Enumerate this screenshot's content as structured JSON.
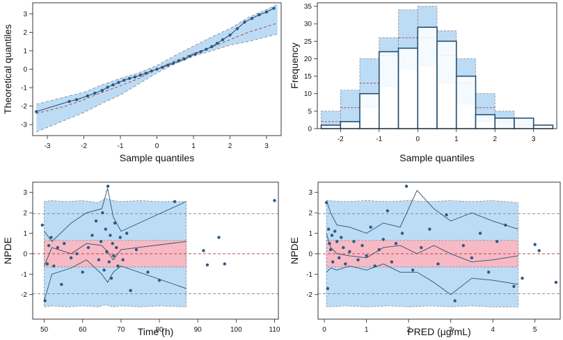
{
  "colors": {
    "blue_band": "#bcdcf6",
    "pink_band": "#f7b9c4",
    "point": "#2a5a85",
    "line": "#27506f",
    "red_dash": "#b5332f",
    "gray_dash": "#7f7f7f",
    "frame": "#222222"
  },
  "chart_data": [
    {
      "id": "qq",
      "type": "scatter",
      "title": "",
      "xlabel": "Sample quantiles",
      "ylabel": "Theoretical quantiles",
      "xlim": [
        -3.4,
        3.4
      ],
      "ylim": [
        -3.6,
        3.6
      ],
      "xticks": [
        -3,
        -2,
        -1,
        0,
        1,
        2,
        3
      ],
      "yticks": [
        -3,
        -2,
        -1,
        0,
        1,
        2,
        3
      ],
      "pi_band": {
        "x": [
          -3.3,
          -2.5,
          -2.0,
          -1.5,
          -1.0,
          -0.5,
          0.0,
          0.5,
          1.0,
          1.5,
          2.0,
          2.5,
          3.3
        ],
        "lower": [
          -3.4,
          -2.75,
          -2.35,
          -1.85,
          -1.4,
          -0.8,
          -0.2,
          0.3,
          0.7,
          1.0,
          1.3,
          1.5,
          1.9
        ],
        "upper": [
          -1.9,
          -1.5,
          -1.25,
          -0.85,
          -0.5,
          -0.2,
          0.2,
          0.75,
          1.25,
          1.75,
          2.2,
          2.8,
          3.5
        ],
        "median": [
          -2.4,
          -2.0,
          -1.65,
          -1.25,
          -0.9,
          -0.5,
          0.0,
          0.45,
          0.85,
          1.2,
          1.6,
          2.0,
          2.5
        ]
      },
      "points": {
        "x": [
          -3.3,
          -2.4,
          -2.2,
          -1.9,
          -1.7,
          -1.5,
          -1.35,
          -1.2,
          -1.05,
          -0.9,
          -0.75,
          -0.6,
          -0.45,
          -0.3,
          -0.15,
          0.0,
          0.15,
          0.3,
          0.45,
          0.6,
          0.75,
          0.9,
          1.05,
          1.2,
          1.35,
          1.5,
          1.65,
          1.8,
          2.0,
          2.2,
          2.4,
          2.6,
          2.8,
          3.0,
          3.2
        ],
        "y": [
          -2.3,
          -1.75,
          -1.65,
          -1.45,
          -1.3,
          -1.15,
          -0.98,
          -0.85,
          -0.72,
          -0.6,
          -0.5,
          -0.42,
          -0.32,
          -0.22,
          -0.1,
          0.0,
          0.1,
          0.22,
          0.32,
          0.45,
          0.55,
          0.7,
          0.82,
          0.95,
          1.08,
          1.22,
          1.4,
          1.6,
          1.85,
          2.2,
          2.55,
          2.75,
          2.95,
          3.1,
          3.3
        ]
      }
    },
    {
      "id": "hist",
      "type": "bar",
      "title": "",
      "xlabel": "Sample quantiles",
      "ylabel": "Frequency",
      "xlim": [
        -2.6,
        3.6
      ],
      "ylim": [
        0,
        36
      ],
      "xticks": [
        -2,
        -1,
        0,
        1,
        2,
        3
      ],
      "yticks": [
        0,
        5,
        10,
        15,
        20,
        25,
        30,
        35
      ],
      "bin_edges": [
        -2.5,
        -2.0,
        -1.5,
        -1.0,
        -0.5,
        0.0,
        0.5,
        1.0,
        1.5,
        2.0,
        2.5,
        3.0,
        3.5
      ],
      "values": [
        1,
        2,
        10,
        22,
        23,
        29,
        25,
        15,
        4,
        3,
        3,
        1
      ],
      "pi_lower": [
        0,
        0,
        6,
        12,
        17,
        18,
        13,
        7,
        2,
        0,
        0,
        0
      ],
      "pi_upper": [
        5,
        11,
        20,
        26,
        34,
        35,
        28,
        20,
        10,
        5,
        3,
        0
      ],
      "pi_median": [
        2,
        6,
        13,
        21,
        26,
        26,
        21,
        13,
        6,
        2,
        1,
        0
      ]
    },
    {
      "id": "npde_time",
      "type": "scatter",
      "title": "",
      "xlabel": "Time (h)",
      "ylabel": "NPDE",
      "xlim": [
        47,
        111
      ],
      "ylim": [
        -3.2,
        3.5
      ],
      "xticks": [
        50,
        60,
        70,
        80,
        90,
        100,
        110
      ],
      "yticks": [
        -2,
        -1,
        0,
        1,
        2,
        3
      ],
      "ref_lines": [
        -1.96,
        0,
        1.96
      ],
      "blue_band": {
        "x": [
          50,
          52,
          56,
          60,
          64,
          66,
          68,
          70,
          75,
          80,
          87
        ],
        "lower": [
          -2.6,
          -2.55,
          -2.6,
          -2.55,
          -2.6,
          -2.5,
          -2.6,
          -2.55,
          -2.6,
          -2.55,
          -2.6
        ],
        "upper": [
          2.55,
          2.6,
          2.55,
          2.6,
          2.5,
          2.7,
          2.6,
          2.55,
          2.6,
          2.55,
          2.55
        ]
      },
      "pink_band": {
        "x": [
          50,
          87
        ],
        "lower": [
          -0.65,
          -0.65
        ],
        "upper": [
          0.65,
          0.65
        ]
      },
      "obs_percentiles": {
        "x": [
          50,
          52,
          57,
          61,
          65,
          66.5,
          68,
          70,
          87
        ],
        "p5": [
          -2.3,
          -1.0,
          -0.7,
          -0.3,
          -1.0,
          -1.4,
          -0.9,
          -0.6,
          -1.7
        ],
        "p50": [
          -0.6,
          0.3,
          0.0,
          0.5,
          0.4,
          0.1,
          -0.3,
          0.2,
          0.6
        ],
        "p95": [
          1.1,
          0.6,
          1.5,
          2.0,
          2.2,
          3.2,
          1.8,
          1.1,
          2.55
        ]
      },
      "points": {
        "x": [
          49.5,
          50.2,
          50.8,
          51.2,
          51.8,
          52.5,
          53.5,
          54.5,
          55.2,
          57.0,
          58.5,
          60.0,
          61.5,
          62.5,
          63.5,
          64.2,
          64.8,
          65.2,
          65.6,
          66.0,
          66.3,
          66.6,
          66.9,
          67.2,
          67.5,
          67.8,
          68.1,
          68.4,
          68.8,
          69.2,
          69.8,
          70.5,
          71.5,
          72.5,
          74.0,
          77.0,
          80.0,
          84.0,
          91.5,
          92.5,
          95.5,
          97.0,
          110.0
        ],
        "y": [
          1.4,
          -2.3,
          -0.5,
          0.4,
          0.8,
          -0.6,
          0.3,
          -1.5,
          0.5,
          -0.2,
          0.0,
          -0.9,
          0.3,
          0.9,
          1.6,
          -0.3,
          0.6,
          2.0,
          -0.8,
          1.2,
          0.1,
          3.3,
          -0.4,
          0.9,
          -1.2,
          0.5,
          -0.1,
          1.5,
          0.3,
          -0.6,
          0.8,
          -0.3,
          1.0,
          -1.8,
          0.2,
          -0.9,
          -1.3,
          2.55,
          0.15,
          -0.55,
          0.8,
          -0.5,
          2.6
        ]
      }
    },
    {
      "id": "npde_pred",
      "type": "scatter",
      "title": "",
      "xlabel": "PRED (µg/mL)",
      "ylabel": "NPDE",
      "xlim": [
        -0.15,
        5.6
      ],
      "ylim": [
        -3.2,
        3.5
      ],
      "xticks": [
        0,
        1,
        2,
        3,
        4,
        5
      ],
      "yticks": [
        -2,
        -1,
        0,
        1,
        2,
        3
      ],
      "ref_lines": [
        -1.96,
        0,
        1.96
      ],
      "blue_band": {
        "x": [
          0.05,
          0.5,
          1.0,
          1.5,
          2.0,
          2.5,
          3.0,
          3.5,
          4.0,
          4.6
        ],
        "lower": [
          -2.6,
          -2.55,
          -2.6,
          -2.55,
          -2.6,
          -2.55,
          -2.6,
          -2.55,
          -2.6,
          -2.6
        ],
        "upper": [
          2.6,
          2.55,
          2.6,
          2.55,
          2.6,
          2.55,
          2.6,
          2.55,
          2.6,
          2.5
        ]
      },
      "pink_band": {
        "x": [
          0.05,
          4.6
        ],
        "lower": [
          -0.65,
          -0.65
        ],
        "upper": [
          0.65,
          0.65
        ]
      },
      "obs_percentiles": {
        "x": [
          0.05,
          0.15,
          0.3,
          0.6,
          1.0,
          1.4,
          1.8,
          2.2,
          2.6,
          3.0,
          3.5,
          4.0,
          4.6
        ],
        "p5": [
          -0.9,
          -0.7,
          -0.8,
          -0.6,
          -0.8,
          -0.5,
          -0.9,
          -0.9,
          -1.4,
          -2.0,
          -1.2,
          -1.3,
          -1.5
        ],
        "p50": [
          1.0,
          0.3,
          0.0,
          -0.1,
          -0.2,
          0.3,
          0.4,
          0.0,
          0.4,
          0.0,
          -0.4,
          -0.3,
          -0.1
        ],
        "p95": [
          2.6,
          2.0,
          1.4,
          1.3,
          1.0,
          1.5,
          1.3,
          3.1,
          2.2,
          1.6,
          2.0,
          1.6,
          1.2
        ]
      },
      "points": {
        "x": [
          0.05,
          0.08,
          0.1,
          0.12,
          0.15,
          0.18,
          0.2,
          0.25,
          0.3,
          0.35,
          0.4,
          0.45,
          0.5,
          0.6,
          0.7,
          0.8,
          0.9,
          1.0,
          1.1,
          1.2,
          1.3,
          1.4,
          1.5,
          1.6,
          1.7,
          1.85,
          1.95,
          2.1,
          2.3,
          2.5,
          2.7,
          2.9,
          3.1,
          3.3,
          3.5,
          3.7,
          3.9,
          4.1,
          4.3,
          4.5,
          4.7,
          5.0,
          5.1,
          5.5
        ],
        "y": [
          2.5,
          -1.7,
          1.2,
          0.5,
          0.2,
          0.9,
          -0.4,
          1.1,
          0.6,
          -0.2,
          0.8,
          0.3,
          -0.5,
          0.1,
          0.6,
          -0.3,
          0.4,
          -0.1,
          1.3,
          -0.6,
          0.2,
          0.7,
          2.1,
          -0.4,
          0.5,
          1.0,
          3.3,
          -0.8,
          0.3,
          1.2,
          -0.5,
          1.9,
          -2.3,
          0.4,
          -0.2,
          1.0,
          -0.9,
          0.6,
          1.4,
          -1.6,
          -1.2,
          0.45,
          0.15,
          -1.4
        ]
      }
    }
  ]
}
